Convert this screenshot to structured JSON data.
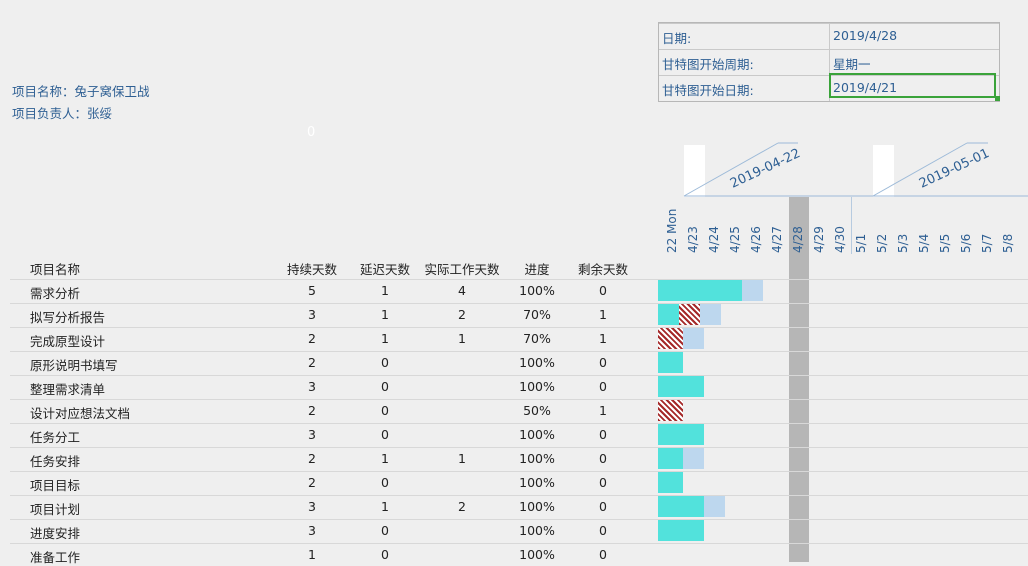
{
  "project": {
    "name_label": "项目名称：兔子窝保卫战",
    "owner_label": "项目负责人：张绥"
  },
  "info": {
    "rows": [
      {
        "label": "日期:",
        "value": "2019/4/28"
      },
      {
        "label": "甘特图开始周期:",
        "value": "星期一"
      },
      {
        "label": "甘特图开始日期:",
        "value": "2019/4/21"
      }
    ]
  },
  "stray_zero": "0",
  "weeks": [
    "2019-04-22",
    "2019-05-01"
  ],
  "dates": [
    "22 Mon",
    "4/23",
    "4/24",
    "4/25",
    "4/26",
    "4/27",
    "4/28",
    "4/29",
    "4/30",
    "5/1",
    "5/2",
    "5/3",
    "5/4",
    "5/5",
    "5/6",
    "5/7",
    "5/8"
  ],
  "table": {
    "headers": [
      "项目名称",
      "持续天数",
      "延迟天数",
      "实际工作天数",
      "进度",
      "剩余天数"
    ],
    "rows": [
      {
        "name": "需求分析",
        "duration": "5",
        "delay": "1",
        "actual": "4",
        "progress": "100%",
        "remaining": "0",
        "done": 4,
        "late": 0,
        "rem": 1
      },
      {
        "name": "拟写分析报告",
        "duration": "3",
        "delay": "1",
        "actual": "2",
        "progress": "70%",
        "remaining": "1",
        "done": 1,
        "late": 1,
        "rem": 1
      },
      {
        "name": "完成原型设计",
        "duration": "2",
        "delay": "1",
        "actual": "1",
        "progress": "70%",
        "remaining": "1",
        "done": 0,
        "late": 1.2,
        "rem": 1
      },
      {
        "name": "原形说明书填写",
        "duration": "2",
        "delay": "0",
        "actual": "",
        "progress": "100%",
        "remaining": "0",
        "done": 1.2,
        "late": 0,
        "rem": 0
      },
      {
        "name": "整理需求清单",
        "duration": "3",
        "delay": "0",
        "actual": "",
        "progress": "100%",
        "remaining": "0",
        "done": 2.2,
        "late": 0,
        "rem": 0
      },
      {
        "name": "设计对应想法文档",
        "duration": "2",
        "delay": "0",
        "actual": "",
        "progress": "50%",
        "remaining": "1",
        "done": 0,
        "late": 1.2,
        "rem": 0
      },
      {
        "name": "任务分工",
        "duration": "3",
        "delay": "0",
        "actual": "",
        "progress": "100%",
        "remaining": "0",
        "done": 2.2,
        "late": 0,
        "rem": 0
      },
      {
        "name": "任务安排",
        "duration": "2",
        "delay": "1",
        "actual": "1",
        "progress": "100%",
        "remaining": "0",
        "done": 1.2,
        "late": 0,
        "rem": 1
      },
      {
        "name": "项目目标",
        "duration": "2",
        "delay": "0",
        "actual": "",
        "progress": "100%",
        "remaining": "0",
        "done": 1.2,
        "late": 0,
        "rem": 0
      },
      {
        "name": "项目计划",
        "duration": "3",
        "delay": "1",
        "actual": "2",
        "progress": "100%",
        "remaining": "0",
        "done": 2.2,
        "late": 0,
        "rem": 1
      },
      {
        "name": "进度安排",
        "duration": "3",
        "delay": "0",
        "actual": "",
        "progress": "100%",
        "remaining": "0",
        "done": 2.2,
        "late": 0,
        "rem": 0
      },
      {
        "name": "准备工作",
        "duration": "1",
        "delay": "0",
        "actual": "",
        "progress": "100%",
        "remaining": "0",
        "done": 0,
        "late": 0,
        "rem": 0
      }
    ]
  },
  "colors": {
    "done": "#52e2dc",
    "remaining": "#bdd7ee",
    "late": "#a52a2a",
    "today": "#b6b6b6",
    "accent_text": "#2e5f93",
    "selection": "#3aa33a"
  }
}
